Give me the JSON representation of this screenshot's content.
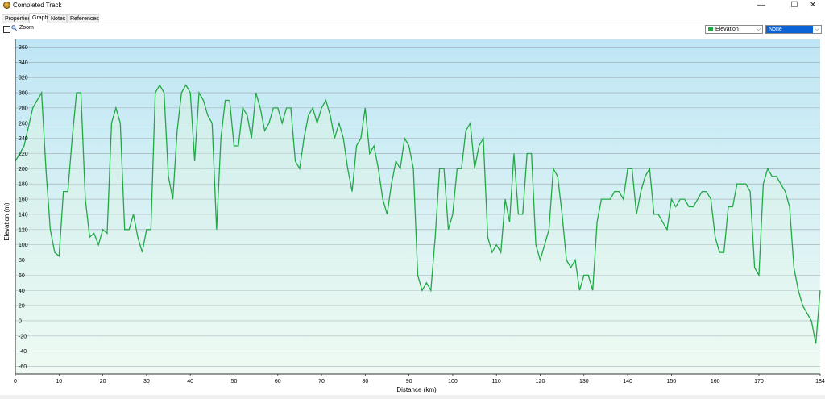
{
  "window": {
    "title": "Completed Track",
    "minimize": "—",
    "maximize": "☐",
    "close": "✕"
  },
  "tabs": [
    {
      "label": "Properties",
      "active": false
    },
    {
      "label": "Graph",
      "active": true
    },
    {
      "label": "Notes",
      "active": false
    },
    {
      "label": "References",
      "active": false
    }
  ],
  "toolbar": {
    "zoom_label": "Zoom",
    "zoom_checked": false,
    "series_select": "Elevation",
    "series_color": "#22a845",
    "second_select": "None"
  },
  "chart_data": {
    "type": "line",
    "xlabel": "Distance  (km)",
    "ylabel": "Elevation (m)",
    "xlim": [
      0,
      184
    ],
    "ylim": [
      -70,
      370
    ],
    "xticks": [
      0,
      10,
      20,
      30,
      40,
      50,
      60,
      70,
      80,
      90,
      100,
      110,
      120,
      130,
      140,
      150,
      160,
      170,
      184
    ],
    "yticks": [
      -60,
      -40,
      -20,
      0,
      20,
      40,
      60,
      80,
      100,
      120,
      140,
      160,
      180,
      200,
      220,
      240,
      260,
      280,
      300,
      320,
      340,
      360
    ],
    "grid": true,
    "series": [
      {
        "color": "#22a845",
        "x": [
          0,
          2,
          4,
          6,
          7,
          8,
          9,
          10,
          11,
          12,
          13,
          14,
          15,
          16,
          17,
          18,
          19,
          20,
          21,
          22,
          23,
          24,
          25,
          26,
          27,
          28,
          29,
          30,
          31,
          32,
          33,
          34,
          35,
          36,
          37,
          38,
          39,
          40,
          41,
          42,
          43,
          44,
          45,
          46,
          47,
          48,
          49,
          50,
          51,
          52,
          53,
          54,
          55,
          56,
          57,
          58,
          59,
          60,
          61,
          62,
          63,
          64,
          65,
          66,
          67,
          68,
          69,
          70,
          71,
          72,
          73,
          74,
          75,
          76,
          77,
          78,
          79,
          80,
          81,
          82,
          83,
          84,
          85,
          86,
          87,
          88,
          89,
          90,
          91,
          92,
          93,
          94,
          95,
          96,
          97,
          98,
          99,
          100,
          101,
          102,
          103,
          104,
          105,
          106,
          107,
          108,
          109,
          110,
          111,
          112,
          113,
          114,
          115,
          116,
          117,
          118,
          119,
          120,
          121,
          122,
          123,
          124,
          125,
          126,
          127,
          128,
          129,
          130,
          131,
          132,
          133,
          134,
          135,
          136,
          137,
          138,
          139,
          140,
          141,
          142,
          143,
          144,
          145,
          146,
          147,
          148,
          149,
          150,
          151,
          152,
          153,
          154,
          155,
          156,
          157,
          158,
          159,
          160,
          161,
          162,
          163,
          164,
          165,
          166,
          167,
          168,
          169,
          170,
          171,
          172,
          173,
          174,
          175,
          176,
          177,
          178,
          179,
          180,
          181,
          182,
          183,
          184
        ],
        "values": [
          210,
          230,
          280,
          300,
          200,
          120,
          90,
          85,
          170,
          170,
          240,
          300,
          300,
          160,
          110,
          115,
          100,
          120,
          115,
          260,
          280,
          260,
          120,
          120,
          140,
          110,
          90,
          120,
          120,
          300,
          310,
          300,
          190,
          160,
          250,
          300,
          310,
          300,
          210,
          300,
          290,
          270,
          260,
          120,
          240,
          290,
          290,
          230,
          230,
          280,
          270,
          240,
          300,
          280,
          250,
          260,
          280,
          280,
          260,
          280,
          280,
          210,
          200,
          240,
          270,
          280,
          260,
          280,
          290,
          270,
          240,
          260,
          240,
          200,
          170,
          230,
          240,
          280,
          220,
          230,
          200,
          160,
          140,
          180,
          210,
          200,
          240,
          230,
          200,
          60,
          40,
          50,
          40,
          110,
          200,
          200,
          120,
          140,
          200,
          200,
          250,
          260,
          200,
          230,
          240,
          110,
          90,
          100,
          90,
          160,
          130,
          220,
          140,
          140,
          220,
          220,
          100,
          80,
          100,
          120,
          200,
          190,
          140,
          80,
          70,
          80,
          40,
          60,
          60,
          40,
          130,
          160,
          160,
          160,
          170,
          170,
          160,
          200,
          200,
          140,
          170,
          190,
          200,
          140,
          140,
          130,
          120,
          160,
          150,
          160,
          160,
          150,
          150,
          160,
          170,
          170,
          160,
          110,
          90,
          90,
          150,
          150,
          180,
          180,
          180,
          170,
          70,
          60,
          180,
          200,
          190,
          190,
          180,
          170,
          150,
          70,
          40,
          20,
          10,
          0,
          -30,
          40
        ]
      }
    ]
  }
}
